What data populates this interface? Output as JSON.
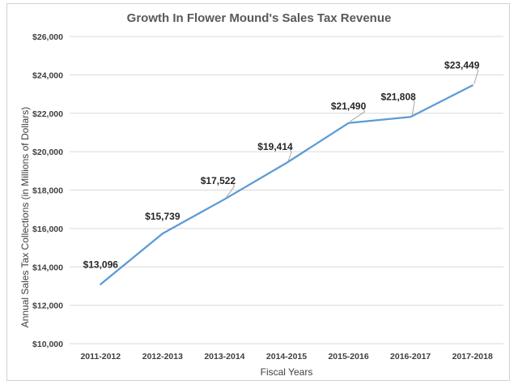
{
  "chart_data": {
    "type": "line",
    "title": "Growth In Flower Mound's Sales Tax Revenue",
    "xlabel": "Fiscal Years",
    "ylabel": "Annual Sales Tax Collections (in Millions of Dollars)",
    "categories": [
      "2011-2012",
      "2012-2013",
      "2013-2014",
      "2014-2015",
      "2015-2016",
      "2016-2017",
      "2017-2018"
    ],
    "series": [
      {
        "values": [
          13096,
          15739,
          17522,
          19414,
          21490,
          21808,
          23449
        ]
      }
    ],
    "data_labels": [
      "$13,096",
      "$15,739",
      "$17,522",
      "$19,414",
      "$21,490",
      "$21,808",
      "$23,449"
    ],
    "ylim": [
      10000,
      26000
    ],
    "yticks": [
      10000,
      12000,
      14000,
      16000,
      18000,
      20000,
      22000,
      24000,
      26000
    ],
    "ytick_labels": [
      "$10,000",
      "$12,000",
      "$14,000",
      "$16,000",
      "$18,000",
      "$20,000",
      "$22,000",
      "$24,000",
      "$26,000"
    ],
    "grid": true,
    "line_color": "#5b9bd5"
  }
}
